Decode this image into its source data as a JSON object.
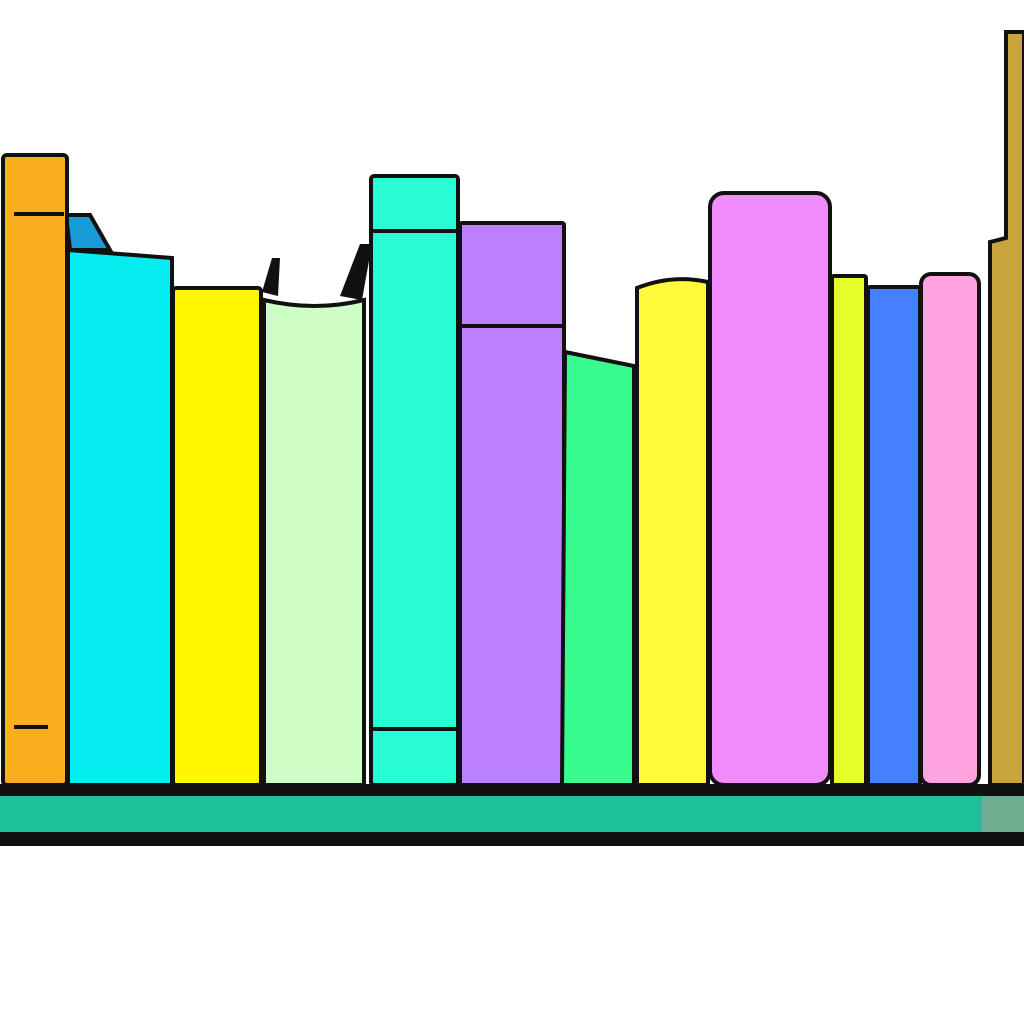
{
  "illustration": {
    "subject": "bookshelf-with-books",
    "books": [
      {
        "name": "orange-book",
        "color": "#F9AE1E"
      },
      {
        "name": "cyan-book",
        "color": "#06EDF0"
      },
      {
        "name": "yellow-book",
        "color": "#FFF700"
      },
      {
        "name": "pale-green-book",
        "color": "#CFFDC6"
      },
      {
        "name": "aqua-book",
        "color": "#28FDD6"
      },
      {
        "name": "purple-book",
        "color": "#BD81FF"
      },
      {
        "name": "green-book",
        "color": "#38FC8D"
      },
      {
        "name": "yellow-book-2",
        "color": "#FFFB3B"
      },
      {
        "name": "pink-book",
        "color": "#F28BFB"
      },
      {
        "name": "lime-book",
        "color": "#E5FE29"
      },
      {
        "name": "blue-book",
        "color": "#4580FE"
      },
      {
        "name": "light-pink-book",
        "color": "#FFA3E0"
      },
      {
        "name": "gold-book",
        "color": "#C9A33C"
      }
    ],
    "shelf_color": "#1EC09C",
    "outline_color": "#111111"
  }
}
